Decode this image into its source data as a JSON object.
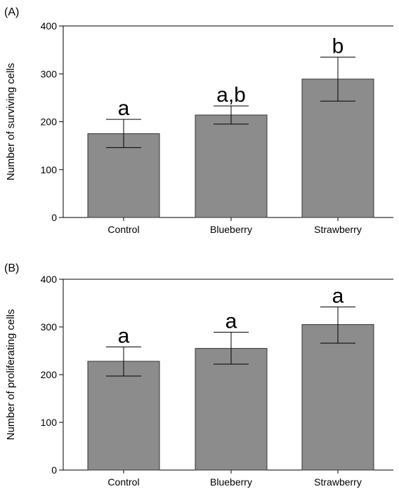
{
  "chart_data": [
    {
      "type": "bar",
      "panel_label": "(A)",
      "categories": [
        "Control",
        "Blueberry",
        "Strawberry"
      ],
      "values": [
        175,
        214,
        289
      ],
      "error": [
        {
          "low": 146,
          "high": 205
        },
        {
          "low": 195,
          "high": 233
        },
        {
          "low": 243,
          "high": 335
        }
      ],
      "significance_labels": [
        "a",
        "a,b",
        "b"
      ],
      "title": "",
      "xlabel": "",
      "ylabel": "Number of surviving cells",
      "ylim": [
        0,
        400
      ],
      "yticks": [
        0,
        100,
        200,
        300,
        400
      ],
      "grid": false,
      "bar_color": "#8c8c8c"
    },
    {
      "type": "bar",
      "panel_label": "(B)",
      "categories": [
        "Control",
        "Blueberry",
        "Strawberry"
      ],
      "values": [
        228,
        255,
        305
      ],
      "error": [
        {
          "low": 197,
          "high": 258
        },
        {
          "low": 222,
          "high": 289
        },
        {
          "low": 266,
          "high": 342
        }
      ],
      "significance_labels": [
        "a",
        "a",
        "a"
      ],
      "title": "",
      "xlabel": "",
      "ylabel": "Number of proliferating cells",
      "ylim": [
        0,
        400
      ],
      "yticks": [
        0,
        100,
        200,
        300,
        400
      ],
      "grid": false,
      "bar_color": "#8c8c8c"
    }
  ]
}
